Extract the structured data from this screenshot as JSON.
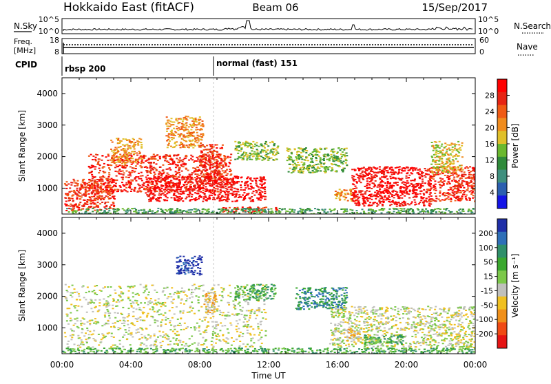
{
  "header": {
    "station": "Hokkaido East (fitACF)",
    "beam": "Beam 06",
    "date": "15/Sep/2017"
  },
  "status_panel": {
    "nsky_label": "N.Sky",
    "nsearch_label": "N.Search",
    "nsky_ticks": [
      "10^5",
      "10^0"
    ],
    "nsearch_ticks": [
      "10^5",
      "10^0"
    ],
    "freq_label_top": "Freq.",
    "freq_label_bottom": "[MHz]",
    "freq_ticks": [
      "18",
      "8"
    ],
    "nave_label": "Nave",
    "nave_ticks": [
      "60",
      "0"
    ],
    "cpid_label": "CPID",
    "cpid_segments": [
      {
        "label": "rbsp 200",
        "start_hour": 0
      },
      {
        "label": "normal (fast) 151",
        "start_hour": 8.8
      }
    ],
    "colors": {
      "line": "#000000"
    }
  },
  "chart_data": [
    {
      "type": "heatmap",
      "name_id": "power",
      "xlabel": "",
      "ylabel": "Slant Range [km]",
      "x_range_hours": [
        0,
        24
      ],
      "ylim": [
        180,
        4500
      ],
      "y_ticks": [
        1000,
        2000,
        3000,
        4000
      ],
      "colorbar": {
        "label": "Power [dB]",
        "ticks": [
          "4",
          "8",
          "12",
          "16",
          "20",
          "24",
          "28"
        ],
        "colors": [
          "#1414e6",
          "#2b5fb0",
          "#3f8f7e",
          "#2f8a3a",
          "#6ab82e",
          "#e0c02a",
          "#f08c1e",
          "#f05a14",
          "#e62414",
          "#ff0000"
        ]
      },
      "regions": [
        {
          "x0": 0.1,
          "x1": 3.0,
          "y0": 300,
          "y1": 1300,
          "level": 8
        },
        {
          "x0": 1.5,
          "x1": 9.8,
          "y0": 900,
          "y1": 2100,
          "level": 8
        },
        {
          "x0": 2.8,
          "x1": 4.6,
          "y0": 1800,
          "y1": 2600,
          "level": 6
        },
        {
          "x0": 6.0,
          "x1": 8.2,
          "y0": 2300,
          "y1": 3300,
          "level": 6
        },
        {
          "x0": 8.0,
          "x1": 9.3,
          "y0": 1200,
          "y1": 2400,
          "level": 8
        },
        {
          "x0": 4.8,
          "x1": 11.8,
          "y0": 600,
          "y1": 1400,
          "level": 9
        },
        {
          "x0": 9.2,
          "x1": 12.5,
          "y0": 250,
          "y1": 420,
          "level": 8
        },
        {
          "x0": 10.0,
          "x1": 12.5,
          "y0": 1900,
          "y1": 2500,
          "level": 4
        },
        {
          "x0": 13.0,
          "x1": 16.5,
          "y0": 1500,
          "y1": 2300,
          "level": 4
        },
        {
          "x0": 15.8,
          "x1": 17.0,
          "y0": 600,
          "y1": 1000,
          "level": 6
        },
        {
          "x0": 16.8,
          "x1": 21.4,
          "y0": 450,
          "y1": 1700,
          "level": 9
        },
        {
          "x0": 21.2,
          "x1": 24.0,
          "y0": 600,
          "y1": 1700,
          "level": 8
        },
        {
          "x0": 21.4,
          "x1": 23.2,
          "y0": 1500,
          "y1": 2500,
          "level": 5
        },
        {
          "x0": 0.0,
          "x1": 24.0,
          "y0": 180,
          "y1": 380,
          "level": 3
        }
      ]
    },
    {
      "type": "heatmap",
      "name_id": "velocity",
      "xlabel": "Time UT",
      "ylabel": "Slant Range [km]",
      "x_range_hours": [
        0,
        24
      ],
      "x_tick_hours": [
        0,
        4,
        8,
        12,
        16,
        20,
        24
      ],
      "x_tick_labels": [
        "00:00",
        "04:00",
        "08:00",
        "12:00",
        "16:00",
        "20:00",
        "00:00"
      ],
      "ylim": [
        180,
        4500
      ],
      "y_ticks": [
        1000,
        2000,
        3000,
        4000
      ],
      "colorbar": {
        "label": "Velocity [m s⁻¹]",
        "ticks": [
          "200",
          "100",
          "50",
          "15",
          "-15",
          "-50",
          "-100",
          "-200"
        ],
        "colors": [
          "#1f2fa8",
          "#2e6fb8",
          "#2f8f6a",
          "#3aa82e",
          "#7cc84a",
          "#c0c0bc",
          "#f0c020",
          "#f0901a",
          "#f04a14",
          "#e61414"
        ]
      },
      "regions": [
        {
          "x0": 0.1,
          "x1": 11.8,
          "y0": 400,
          "y1": 2400,
          "level": 5
        },
        {
          "x0": 6.6,
          "x1": 8.1,
          "y0": 2700,
          "y1": 3300,
          "level": 0
        },
        {
          "x0": 8.2,
          "x1": 8.9,
          "y0": 1500,
          "y1": 2200,
          "level": 6
        },
        {
          "x0": 10.0,
          "x1": 12.4,
          "y0": 1900,
          "y1": 2400,
          "level": 3
        },
        {
          "x0": 13.5,
          "x1": 16.5,
          "y0": 1600,
          "y1": 2300,
          "level": 2
        },
        {
          "x0": 15.5,
          "x1": 24.0,
          "y0": 400,
          "y1": 1700,
          "level": 5
        },
        {
          "x0": 16.5,
          "x1": 17.3,
          "y0": 600,
          "y1": 1000,
          "level": 6
        },
        {
          "x0": 17.5,
          "x1": 19.8,
          "y0": 500,
          "y1": 800,
          "level": 3
        },
        {
          "x0": 0.0,
          "x1": 24.0,
          "y0": 180,
          "y1": 380,
          "level": 3
        }
      ]
    }
  ]
}
